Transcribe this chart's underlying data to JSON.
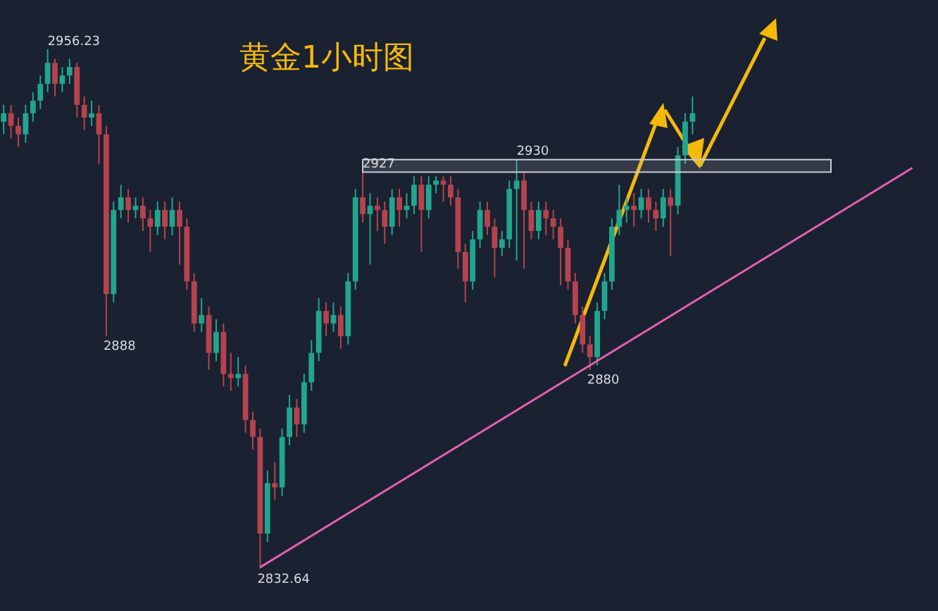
{
  "chart_data": {
    "type": "candlestick",
    "title": "黄金1小时图",
    "tick_labels": false,
    "categories": [
      null,
      null,
      null,
      null,
      null,
      null,
      null,
      null,
      null,
      null,
      null,
      null,
      null,
      null,
      null,
      null,
      null,
      null,
      null,
      null,
      null,
      null,
      null,
      null,
      null,
      null,
      null,
      null,
      null,
      null,
      null,
      null,
      null,
      null,
      null,
      null,
      null,
      null,
      null,
      null,
      null,
      null,
      null,
      null,
      null,
      null,
      null,
      null,
      null,
      null,
      null,
      null,
      null,
      null,
      null,
      null,
      null,
      null,
      null,
      null,
      null,
      null,
      null,
      null,
      null,
      null,
      null,
      null,
      null,
      null,
      null,
      null,
      null,
      null,
      null,
      null,
      null,
      null,
      null,
      null,
      null,
      null,
      null,
      null,
      null,
      null,
      null,
      null,
      null,
      null,
      null,
      null,
      null,
      null,
      null,
      null,
      null,
      null,
      null,
      null,
      null,
      null,
      null,
      null,
      null,
      null,
      null,
      null,
      null,
      null,
      null,
      null,
      null,
      null,
      null,
      null,
      null,
      null,
      null,
      null,
      null,
      null,
      null,
      null,
      null,
      null,
      null,
      null
    ],
    "ohlc": [
      [
        2939,
        2943,
        2936,
        2941
      ],
      [
        2941,
        2943,
        2935,
        2938
      ],
      [
        2938,
        2940,
        2933,
        2936
      ],
      [
        2936,
        2943,
        2934,
        2941
      ],
      [
        2941,
        2946,
        2939,
        2944
      ],
      [
        2944,
        2950,
        2942,
        2948
      ],
      [
        2948,
        2956.23,
        2946,
        2953
      ],
      [
        2953,
        2954,
        2945,
        2948
      ],
      [
        2948,
        2952,
        2946,
        2950
      ],
      [
        2950,
        2954,
        2948,
        2952
      ],
      [
        2952,
        2953,
        2940,
        2943
      ],
      [
        2943,
        2945,
        2937,
        2940
      ],
      [
        2940,
        2944,
        2938,
        2941
      ],
      [
        2941,
        2943,
        2929,
        2936
      ],
      [
        2936,
        2938,
        2888,
        2898
      ],
      [
        2898,
        2920,
        2896,
        2918
      ],
      [
        2918,
        2924,
        2916,
        2921
      ],
      [
        2921,
        2923,
        2915,
        2918
      ],
      [
        2918,
        2921,
        2916,
        2919
      ],
      [
        2919,
        2921,
        2913,
        2916
      ],
      [
        2916,
        2918,
        2908,
        2914
      ],
      [
        2914,
        2920,
        2912,
        2918
      ],
      [
        2918,
        2920,
        2911,
        2914
      ],
      [
        2914,
        2921,
        2912,
        2918
      ],
      [
        2918,
        2920,
        2905,
        2914
      ],
      [
        2914,
        2916,
        2899,
        2901
      ],
      [
        2901,
        2903,
        2889,
        2891
      ],
      [
        2891,
        2897,
        2889,
        2893
      ],
      [
        2893,
        2895,
        2880,
        2884
      ],
      [
        2884,
        2892,
        2882,
        2889
      ],
      [
        2889,
        2891,
        2876,
        2879
      ],
      [
        2879,
        2884,
        2875,
        2878
      ],
      [
        2878,
        2883,
        2876,
        2879
      ],
      [
        2879,
        2881,
        2865,
        2868
      ],
      [
        2868,
        2870,
        2861,
        2864
      ],
      [
        2864,
        2866,
        2832.64,
        2841
      ],
      [
        2841,
        2856,
        2839,
        2853
      ],
      [
        2853,
        2858,
        2849,
        2852
      ],
      [
        2852,
        2866,
        2850,
        2864
      ],
      [
        2864,
        2874,
        2862,
        2871
      ],
      [
        2871,
        2873,
        2864,
        2867
      ],
      [
        2867,
        2879,
        2865,
        2877
      ],
      [
        2877,
        2887,
        2875,
        2884
      ],
      [
        2884,
        2897,
        2882,
        2894
      ],
      [
        2894,
        2896,
        2888,
        2891
      ],
      [
        2891,
        2896,
        2889,
        2893
      ],
      [
        2893,
        2895,
        2885,
        2888
      ],
      [
        2888,
        2903,
        2886,
        2901
      ],
      [
        2901,
        2923,
        2899,
        2921
      ],
      [
        2921,
        2927,
        2915,
        2917
      ],
      [
        2917,
        2922,
        2905,
        2919
      ],
      [
        2919,
        2921,
        2913,
        2918
      ],
      [
        2918,
        2920,
        2910,
        2914
      ],
      [
        2914,
        2923,
        2912,
        2921
      ],
      [
        2921,
        2923,
        2914,
        2918
      ],
      [
        2918,
        2922,
        2916,
        2919
      ],
      [
        2919,
        2926,
        2917,
        2924
      ],
      [
        2924,
        2926,
        2908,
        2918
      ],
      [
        2918,
        2926,
        2916,
        2924
      ],
      [
        2924,
        2926,
        2922,
        2925
      ],
      [
        2925,
        2926,
        2920,
        2924
      ],
      [
        2924,
        2926,
        2919,
        2921
      ],
      [
        2921,
        2923,
        2904,
        2908
      ],
      [
        2908,
        2910,
        2896,
        2901
      ],
      [
        2901,
        2913,
        2899,
        2911
      ],
      [
        2911,
        2920,
        2909,
        2918
      ],
      [
        2918,
        2920,
        2912,
        2914
      ],
      [
        2914,
        2916,
        2902,
        2909
      ],
      [
        2909,
        2913,
        2907,
        2911
      ],
      [
        2911,
        2925,
        2909,
        2923
      ],
      [
        2923,
        2930,
        2906,
        2925
      ],
      [
        2925,
        2927,
        2904,
        2918
      ],
      [
        2918,
        2920,
        2911,
        2913
      ],
      [
        2913,
        2920,
        2911,
        2918
      ],
      [
        2918,
        2920,
        2912,
        2916
      ],
      [
        2916,
        2918,
        2911,
        2914
      ],
      [
        2914,
        2916,
        2900,
        2909
      ],
      [
        2909,
        2911,
        2899,
        2901
      ],
      [
        2901,
        2903,
        2891,
        2893
      ],
      [
        2893,
        2895,
        2884,
        2886
      ],
      [
        2886,
        2888,
        2880,
        2883
      ],
      [
        2883,
        2896,
        2881,
        2894
      ],
      [
        2894,
        2903,
        2892,
        2901
      ],
      [
        2901,
        2916,
        2899,
        2914
      ],
      [
        2914,
        2924,
        2912,
        2918
      ],
      [
        2918,
        2921,
        2915,
        2919
      ],
      [
        2919,
        2922,
        2914,
        2918
      ],
      [
        2918,
        2923,
        2916,
        2921
      ],
      [
        2921,
        2923,
        2915,
        2918
      ],
      [
        2918,
        2920,
        2913,
        2916
      ],
      [
        2916,
        2923,
        2914,
        2921
      ],
      [
        2921,
        2923,
        2907,
        2919
      ],
      [
        2919,
        2933,
        2917,
        2931
      ],
      [
        2931,
        2941,
        2929,
        2939
      ],
      [
        2939,
        2945,
        2936,
        2941
      ],
      null,
      null,
      null,
      null,
      null,
      null,
      null,
      null,
      null,
      null,
      null,
      null,
      null,
      null,
      null,
      null,
      null,
      null,
      null,
      null,
      null,
      null,
      null,
      null,
      null,
      null,
      null,
      null,
      null,
      null,
      null,
      null,
      null
    ],
    "value_labels": [
      null,
      null,
      null,
      null,
      null,
      null,
      "2956.23",
      null,
      null,
      null,
      null,
      null,
      null,
      null,
      "2888",
      null,
      null,
      null,
      null,
      null,
      null,
      null,
      null,
      null,
      null,
      null,
      null,
      null,
      null,
      null,
      null,
      null,
      null,
      null,
      null,
      "2832.64",
      null,
      null,
      null,
      null,
      null,
      null,
      null,
      null,
      null,
      null,
      null,
      null,
      null,
      "2927",
      null,
      null,
      null,
      null,
      null,
      null,
      null,
      null,
      null,
      null,
      null,
      null,
      null,
      null,
      null,
      null,
      null,
      null,
      null,
      null,
      "2930",
      null,
      null,
      null,
      null,
      null,
      null,
      null,
      null,
      null,
      "2880",
      null,
      null,
      null,
      null,
      null,
      null,
      null,
      null,
      null,
      null,
      null,
      null,
      null,
      null,
      null,
      null,
      null,
      null,
      null,
      null,
      null,
      null,
      null,
      null,
      null,
      null,
      null,
      null,
      null,
      null,
      null,
      null,
      null,
      null,
      null,
      null,
      null,
      null,
      null,
      null,
      null,
      null,
      null,
      null,
      null,
      null,
      null
    ],
    "series": [
      {
        "type": "line",
        "color": "#e35fb4",
        "values": [
          null,
          null,
          null,
          null,
          null,
          null,
          null,
          null,
          null,
          null,
          null,
          null,
          null,
          null,
          null,
          null,
          null,
          null,
          null,
          null,
          null,
          null,
          null,
          null,
          null,
          null,
          null,
          null,
          null,
          null,
          null,
          null,
          null,
          null,
          null,
          2833,
          null,
          null,
          null,
          null,
          null,
          null,
          null,
          null,
          null,
          null,
          null,
          null,
          null,
          null,
          null,
          null,
          null,
          null,
          null,
          null,
          null,
          null,
          null,
          null,
          null,
          null,
          null,
          null,
          null,
          null,
          null,
          null,
          null,
          null,
          null,
          null,
          null,
          null,
          null,
          null,
          null,
          null,
          null,
          null,
          null,
          null,
          null,
          null,
          null,
          null,
          null,
          null,
          null,
          null,
          null,
          null,
          null,
          null,
          null,
          null,
          null,
          null,
          null,
          null,
          null,
          null,
          null,
          null,
          null,
          null,
          null,
          null,
          null,
          null,
          null,
          null,
          null,
          null,
          null,
          null,
          null,
          null,
          null,
          null,
          null,
          null,
          null,
          null,
          2928,
          null,
          null,
          null
        ]
      }
    ],
    "bands": [
      {
        "axis": "y",
        "from": 2927,
        "to": 2930,
        "color": "#c8ccd4"
      }
    ]
  }
}
